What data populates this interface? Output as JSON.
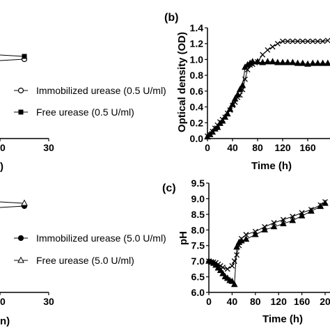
{
  "chart_data": [
    {
      "panel": "left-top",
      "type": "line",
      "x_ticks": [
        "20",
        "30"
      ],
      "xlabel_fragment": ")",
      "legend": [
        "Immobilized urease (0.5 U/ml)",
        "Free urease (0.5 U/ml)"
      ],
      "series": [
        {
          "name": "Immobilized urease (0.5 U/ml)",
          "marker": "open-circle",
          "points": [
            [
              24,
              0.92
            ]
          ]
        },
        {
          "name": "Free urease (0.5 U/ml)",
          "marker": "filled-square",
          "points": [
            [
              24,
              1.0
            ]
          ]
        }
      ]
    },
    {
      "panel": "b",
      "type": "line",
      "tag": "(b)",
      "xlabel": "Time (h)",
      "ylabel": "Optical density (OD)",
      "xlim": [
        0,
        200
      ],
      "ylim": [
        0,
        1.4
      ],
      "x_ticks": [
        "0",
        "40",
        "80",
        "120",
        "160",
        "2"
      ],
      "y_ticks": [
        "0.0",
        "0.2",
        "0.4",
        "0.6",
        "0.8",
        "1.0",
        "1.2",
        "1.4"
      ],
      "series": [
        {
          "marker": "x",
          "points": [
            [
              0,
              0.03
            ],
            [
              4,
              0.05
            ],
            [
              8,
              0.09
            ],
            [
              12,
              0.13
            ],
            [
              16,
              0.17
            ],
            [
              20,
              0.21
            ],
            [
              24,
              0.24
            ],
            [
              28,
              0.27
            ],
            [
              32,
              0.32
            ],
            [
              36,
              0.36
            ],
            [
              40,
              0.42
            ],
            [
              44,
              0.46
            ],
            [
              48,
              0.52
            ],
            [
              52,
              0.55
            ],
            [
              56,
              0.62
            ],
            [
              60,
              0.75
            ],
            [
              64,
              0.87
            ],
            [
              68,
              0.93
            ],
            [
              72,
              0.94
            ],
            [
              76,
              0.96
            ],
            [
              80,
              0.97
            ],
            [
              88,
              1.06
            ],
            [
              96,
              1.12
            ],
            [
              104,
              1.16
            ],
            [
              112,
              1.2
            ],
            [
              120,
              1.23
            ],
            [
              128,
              1.23
            ],
            [
              136,
              1.23
            ],
            [
              144,
              1.23
            ],
            [
              152,
              1.23
            ],
            [
              160,
              1.23
            ],
            [
              168,
              1.23
            ],
            [
              176,
              1.23
            ],
            [
              184,
              1.23
            ],
            [
              192,
              1.24
            ]
          ]
        },
        {
          "marker": "filled-triangle",
          "points": [
            [
              0,
              0.02
            ],
            [
              4,
              0.05
            ],
            [
              8,
              0.08
            ],
            [
              12,
              0.12
            ],
            [
              16,
              0.14
            ],
            [
              20,
              0.19
            ],
            [
              24,
              0.22
            ],
            [
              28,
              0.27
            ],
            [
              32,
              0.31
            ],
            [
              36,
              0.37
            ],
            [
              40,
              0.43
            ],
            [
              44,
              0.5
            ],
            [
              48,
              0.55
            ],
            [
              52,
              0.62
            ],
            [
              56,
              0.67
            ],
            [
              60,
              0.9
            ],
            [
              64,
              0.93
            ],
            [
              68,
              0.95
            ],
            [
              72,
              0.97
            ],
            [
              80,
              0.97
            ],
            [
              88,
              0.96
            ],
            [
              96,
              0.97
            ],
            [
              104,
              0.97
            ],
            [
              112,
              0.96
            ],
            [
              120,
              0.96
            ],
            [
              128,
              0.96
            ],
            [
              136,
              0.96
            ],
            [
              144,
              0.95
            ],
            [
              152,
              0.95
            ],
            [
              160,
              0.94
            ],
            [
              168,
              0.95
            ],
            [
              176,
              0.95
            ],
            [
              184,
              0.95
            ],
            [
              192,
              0.95
            ]
          ]
        }
      ]
    },
    {
      "panel": "left-bottom",
      "type": "line",
      "x_ticks": [
        "20",
        "30"
      ],
      "xlabel_fragment": "n)",
      "legend": [
        "Immobilized urease (5.0 U/ml)",
        "Free urease (5.0 U/ml)"
      ],
      "series": [
        {
          "name": "Immobilized urease (5.0 U/ml)",
          "marker": "filled-circle",
          "points": [
            [
              24,
              0.97
            ]
          ]
        },
        {
          "name": "Free urease (5.0 U/ml)",
          "marker": "open-triangle",
          "points": [
            [
              24,
              1.0
            ]
          ]
        }
      ]
    },
    {
      "panel": "c",
      "type": "line",
      "tag": "(c)",
      "xlabel": "Time (h)",
      "ylabel": "pH",
      "xlim": [
        0,
        200
      ],
      "ylim": [
        6.0,
        9.5
      ],
      "x_ticks": [
        "0",
        "40",
        "80",
        "120",
        "160",
        "20"
      ],
      "y_ticks": [
        "6.0",
        "6.5",
        "7.0",
        "7.5",
        "8.0",
        "8.5",
        "9.0",
        "9.5"
      ],
      "series": [
        {
          "marker": "x",
          "points": [
            [
              0,
              7.0
            ],
            [
              4,
              6.98
            ],
            [
              8,
              6.97
            ],
            [
              12,
              6.95
            ],
            [
              16,
              6.9
            ],
            [
              20,
              6.85
            ],
            [
              24,
              6.8
            ],
            [
              32,
              6.75
            ],
            [
              40,
              6.85
            ],
            [
              44,
              7.0
            ],
            [
              48,
              7.2
            ],
            [
              52,
              7.5
            ],
            [
              56,
              7.72
            ],
            [
              64,
              7.85
            ],
            [
              80,
              7.95
            ],
            [
              96,
              8.1
            ],
            [
              112,
              8.23
            ],
            [
              128,
              8.33
            ],
            [
              144,
              8.43
            ],
            [
              160,
              8.55
            ],
            [
              176,
              8.65
            ],
            [
              192,
              8.8
            ],
            [
              200,
              8.9
            ]
          ]
        },
        {
          "marker": "filled-triangle",
          "points": [
            [
              0,
              7.0
            ],
            [
              4,
              6.97
            ],
            [
              8,
              6.93
            ],
            [
              12,
              6.87
            ],
            [
              16,
              6.78
            ],
            [
              20,
              6.7
            ],
            [
              24,
              6.6
            ],
            [
              28,
              6.5
            ],
            [
              32,
              6.45
            ],
            [
              36,
              6.38
            ],
            [
              40,
              6.35
            ],
            [
              44,
              6.25
            ],
            [
              48,
              7.45
            ],
            [
              52,
              7.6
            ],
            [
              56,
              7.65
            ],
            [
              64,
              7.7
            ],
            [
              80,
              7.85
            ],
            [
              96,
              8.0
            ],
            [
              112,
              8.1
            ],
            [
              128,
              8.2
            ],
            [
              144,
              8.3
            ],
            [
              160,
              8.45
            ],
            [
              176,
              8.6
            ],
            [
              192,
              8.75
            ],
            [
              200,
              8.85
            ]
          ]
        }
      ]
    }
  ]
}
